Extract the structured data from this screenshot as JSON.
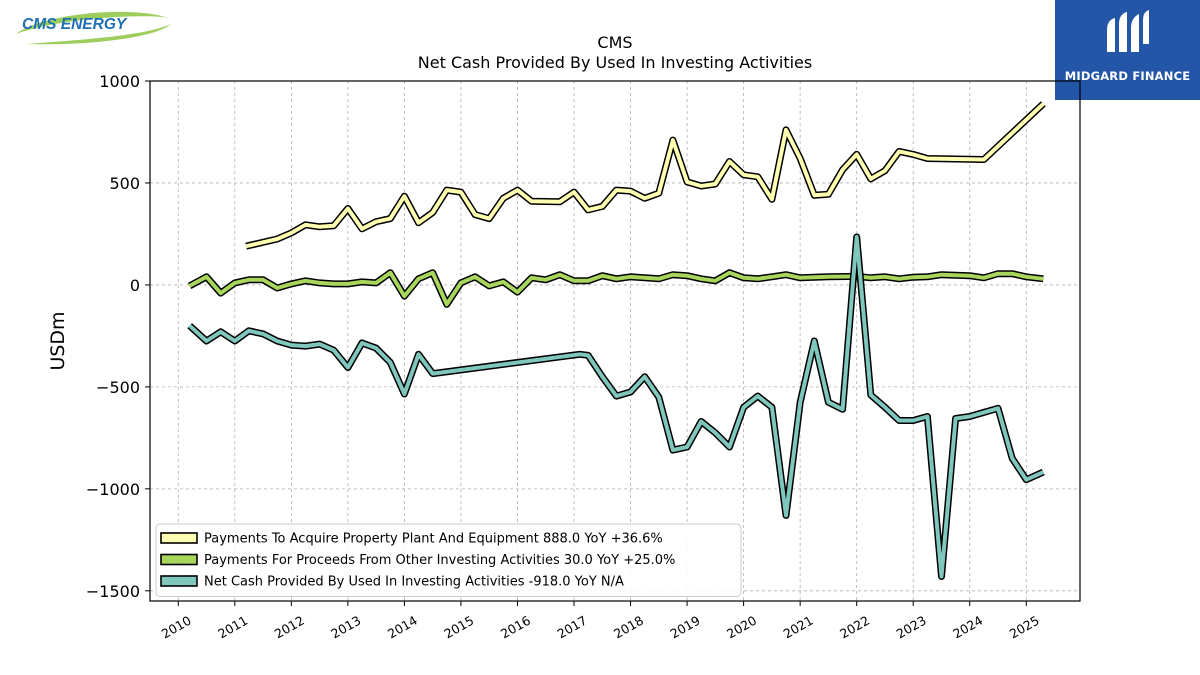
{
  "logos": {
    "left_text": "CMS ENERGY",
    "right_text": "MIDGARD FINANCE"
  },
  "chart_data": {
    "type": "line",
    "title": "CMS",
    "subtitle": "Net Cash Provided By Used In Investing Activities",
    "xlabel": "",
    "ylabel": "USDm",
    "xlim": [
      2009.5,
      2025.95
    ],
    "ylim": [
      -1550,
      1000
    ],
    "yticks": [
      1000,
      500,
      0,
      -500,
      -1000,
      -1500
    ],
    "ytick_labels": [
      "1000",
      "500",
      "0",
      "−500",
      "−1000",
      "−1500"
    ],
    "xticks": [
      2010,
      2011,
      2012,
      2013,
      2014,
      2015,
      2016,
      2017,
      2018,
      2019,
      2020,
      2021,
      2022,
      2023,
      2024,
      2025
    ],
    "xtick_labels": [
      "2010",
      "2011",
      "2012",
      "2013",
      "2014",
      "2015",
      "2016",
      "2017",
      "2018",
      "2019",
      "2020",
      "2021",
      "2022",
      "2023",
      "2024",
      "2025"
    ],
    "grid": true,
    "legend_position": "lower-left",
    "series": [
      {
        "name": "Payments To Acquire Property Plant And Equipment",
        "legend_label": "Payments To Acquire Property Plant And Equipment  888.0 YoY +36.6%",
        "color": "#ffffb2",
        "points": [
          [
            2011.2,
            190
          ],
          [
            2011.75,
            225
          ],
          [
            2012.0,
            255
          ],
          [
            2012.25,
            295
          ],
          [
            2012.5,
            285
          ],
          [
            2012.75,
            290
          ],
          [
            2013.0,
            375
          ],
          [
            2013.25,
            275
          ],
          [
            2013.5,
            310
          ],
          [
            2013.75,
            325
          ],
          [
            2014.0,
            435
          ],
          [
            2014.25,
            305
          ],
          [
            2014.5,
            355
          ],
          [
            2014.75,
            465
          ],
          [
            2015.0,
            455
          ],
          [
            2015.25,
            345
          ],
          [
            2015.5,
            325
          ],
          [
            2015.75,
            425
          ],
          [
            2016.0,
            465
          ],
          [
            2016.25,
            410
          ],
          [
            2016.75,
            408
          ],
          [
            2017.0,
            455
          ],
          [
            2017.25,
            368
          ],
          [
            2017.5,
            385
          ],
          [
            2017.75,
            465
          ],
          [
            2018.0,
            460
          ],
          [
            2018.25,
            425
          ],
          [
            2018.5,
            450
          ],
          [
            2018.75,
            710
          ],
          [
            2019.0,
            505
          ],
          [
            2019.25,
            485
          ],
          [
            2019.5,
            495
          ],
          [
            2019.75,
            605
          ],
          [
            2020.0,
            540
          ],
          [
            2020.25,
            530
          ],
          [
            2020.5,
            420
          ],
          [
            2020.75,
            760
          ],
          [
            2021.0,
            620
          ],
          [
            2021.25,
            440
          ],
          [
            2021.5,
            445
          ],
          [
            2021.75,
            565
          ],
          [
            2022.0,
            640
          ],
          [
            2022.25,
            520
          ],
          [
            2022.5,
            560
          ],
          [
            2022.75,
            655
          ],
          [
            2023.0,
            640
          ],
          [
            2023.25,
            620
          ],
          [
            2024.25,
            615
          ],
          [
            2025.3,
            888
          ]
        ]
      },
      {
        "name": "Payments For Proceeds From Other Investing Activities",
        "legend_label": "Payments For Proceeds From Other Investing Activities  30.0 YoY +25.0%",
        "color": "#a8d65c",
        "points": [
          [
            2010.2,
            -5
          ],
          [
            2010.5,
            40
          ],
          [
            2010.75,
            -40
          ],
          [
            2011.0,
            10
          ],
          [
            2011.25,
            25
          ],
          [
            2011.5,
            25
          ],
          [
            2011.75,
            -15
          ],
          [
            2012.0,
            5
          ],
          [
            2012.25,
            20
          ],
          [
            2012.5,
            10
          ],
          [
            2012.75,
            5
          ],
          [
            2013.0,
            5
          ],
          [
            2013.25,
            15
          ],
          [
            2013.5,
            10
          ],
          [
            2013.75,
            60
          ],
          [
            2014.0,
            -55
          ],
          [
            2014.25,
            30
          ],
          [
            2014.5,
            60
          ],
          [
            2014.75,
            -95
          ],
          [
            2015.0,
            10
          ],
          [
            2015.25,
            40
          ],
          [
            2015.5,
            -5
          ],
          [
            2015.75,
            15
          ],
          [
            2016.0,
            -35
          ],
          [
            2016.25,
            35
          ],
          [
            2016.5,
            25
          ],
          [
            2016.75,
            50
          ],
          [
            2017.0,
            20
          ],
          [
            2017.25,
            20
          ],
          [
            2017.5,
            45
          ],
          [
            2017.75,
            30
          ],
          [
            2018.0,
            40
          ],
          [
            2018.25,
            35
          ],
          [
            2018.5,
            30
          ],
          [
            2018.75,
            50
          ],
          [
            2019.0,
            45
          ],
          [
            2019.25,
            30
          ],
          [
            2019.5,
            20
          ],
          [
            2019.75,
            60
          ],
          [
            2020.0,
            35
          ],
          [
            2020.25,
            30
          ],
          [
            2020.5,
            40
          ],
          [
            2020.75,
            50
          ],
          [
            2021.0,
            35
          ],
          [
            2021.25,
            38
          ],
          [
            2021.5,
            40
          ],
          [
            2022.0,
            42
          ],
          [
            2022.25,
            35
          ],
          [
            2022.5,
            40
          ],
          [
            2022.75,
            30
          ],
          [
            2023.0,
            38
          ],
          [
            2023.25,
            40
          ],
          [
            2023.5,
            50
          ],
          [
            2024.0,
            45
          ],
          [
            2024.25,
            35
          ],
          [
            2024.5,
            55
          ],
          [
            2024.75,
            55
          ],
          [
            2025.0,
            40
          ],
          [
            2025.3,
            30
          ]
        ]
      },
      {
        "name": "Net Cash Provided By Used In Investing Activities",
        "legend_label": "Net Cash Provided By Used In Investing Activities  -918.0 YoY N/A",
        "color": "#7fc6bc",
        "points": [
          [
            2010.2,
            -200
          ],
          [
            2010.5,
            -275
          ],
          [
            2010.75,
            -230
          ],
          [
            2011.0,
            -275
          ],
          [
            2011.25,
            -225
          ],
          [
            2011.5,
            -240
          ],
          [
            2011.75,
            -275
          ],
          [
            2012.0,
            -295
          ],
          [
            2012.25,
            -300
          ],
          [
            2012.5,
            -290
          ],
          [
            2012.75,
            -320
          ],
          [
            2013.0,
            -405
          ],
          [
            2013.25,
            -285
          ],
          [
            2013.5,
            -310
          ],
          [
            2013.75,
            -380
          ],
          [
            2014.0,
            -535
          ],
          [
            2014.25,
            -340
          ],
          [
            2014.5,
            -435
          ],
          [
            2017.1,
            -340
          ],
          [
            2017.25,
            -345
          ],
          [
            2017.5,
            -450
          ],
          [
            2017.75,
            -545
          ],
          [
            2018.0,
            -525
          ],
          [
            2018.25,
            -450
          ],
          [
            2018.5,
            -550
          ],
          [
            2018.75,
            -810
          ],
          [
            2019.0,
            -795
          ],
          [
            2019.25,
            -670
          ],
          [
            2019.5,
            -725
          ],
          [
            2019.75,
            -795
          ],
          [
            2020.0,
            -600
          ],
          [
            2020.25,
            -545
          ],
          [
            2020.5,
            -600
          ],
          [
            2020.75,
            -1130
          ],
          [
            2021.0,
            -575
          ],
          [
            2021.25,
            -275
          ],
          [
            2021.5,
            -575
          ],
          [
            2021.75,
            -610
          ],
          [
            2022.0,
            235
          ],
          [
            2022.25,
            -540
          ],
          [
            2022.5,
            -600
          ],
          [
            2022.75,
            -665
          ],
          [
            2023.0,
            -665
          ],
          [
            2023.25,
            -645
          ],
          [
            2023.5,
            -1430
          ],
          [
            2023.75,
            -655
          ],
          [
            2024.0,
            -645
          ],
          [
            2024.25,
            -625
          ],
          [
            2024.5,
            -605
          ],
          [
            2024.75,
            -850
          ],
          [
            2025.0,
            -955
          ],
          [
            2025.3,
            -918
          ]
        ]
      }
    ]
  }
}
